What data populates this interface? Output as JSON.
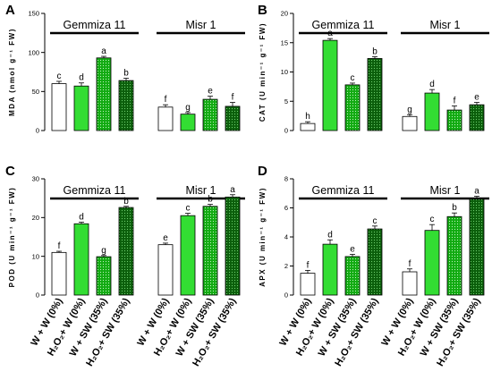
{
  "colors": [
    "#ffffff",
    "#33dd33",
    "#11aa11",
    "#0b5e0b"
  ],
  "pattern_dots": [
    false,
    false,
    true,
    true
  ],
  "categories": [
    "W + W (0%)",
    "H₂O₂+ W (0%)",
    "W + SW (35%)",
    "H₂O₂+ SW (35%)"
  ],
  "chart_data": [
    {
      "panel": "A",
      "type": "bar",
      "ylabel": "MDA (nmol g⁻¹ FW)",
      "ylim": [
        0,
        150
      ],
      "yticks": [
        0,
        50,
        100,
        150
      ],
      "groups": [
        {
          "name": "Gemmiza 11",
          "values": [
            60,
            57,
            93,
            64
          ],
          "errors": [
            3,
            4,
            2,
            3
          ],
          "letters": [
            "c",
            "d",
            "a",
            "b"
          ]
        },
        {
          "name": "Misr 1",
          "values": [
            30,
            21,
            40,
            31
          ],
          "errors": [
            3,
            2,
            4,
            5
          ],
          "letters": [
            "f",
            "g",
            "e",
            "f"
          ]
        }
      ]
    },
    {
      "panel": "B",
      "type": "bar",
      "ylabel": "CAT (U min⁻¹ g⁻¹ FW)",
      "ylim": [
        0,
        20
      ],
      "yticks": [
        0,
        5,
        10,
        15,
        20
      ],
      "groups": [
        {
          "name": "Gemmiza 11",
          "values": [
            1.2,
            15.4,
            7.8,
            12.3
          ],
          "errors": [
            0.3,
            0.3,
            0.3,
            0.3
          ],
          "letters": [
            "h",
            "a",
            "c",
            "b"
          ]
        },
        {
          "name": "Misr 1",
          "values": [
            2.4,
            6.4,
            3.5,
            4.4
          ],
          "errors": [
            0.3,
            0.6,
            0.7,
            0.4
          ],
          "letters": [
            "g",
            "d",
            "f",
            "e"
          ]
        }
      ]
    },
    {
      "panel": "C",
      "type": "bar",
      "ylabel": "POD (U min⁻¹ g⁻¹ FW)",
      "ylim": [
        0,
        30
      ],
      "yticks": [
        0,
        10,
        20,
        30
      ],
      "groups": [
        {
          "name": "Gemmiza 11",
          "values": [
            11,
            18.4,
            9.9,
            22.6
          ],
          "errors": [
            0.3,
            0.4,
            0.3,
            0.3
          ],
          "letters": [
            "f",
            "d",
            "g",
            "b"
          ]
        },
        {
          "name": "Misr 1",
          "values": [
            13,
            20.5,
            22.9,
            25.3
          ],
          "errors": [
            0.4,
            0.6,
            0.5,
            0.6
          ],
          "letters": [
            "e",
            "c",
            "b",
            "a"
          ]
        }
      ]
    },
    {
      "panel": "D",
      "type": "bar",
      "ylabel": "APX (U min⁻¹ g⁻¹ FW)",
      "ylim": [
        0,
        8
      ],
      "yticks": [
        0,
        2,
        4,
        6,
        8
      ],
      "groups": [
        {
          "name": "Gemmiza 11",
          "values": [
            1.5,
            3.5,
            2.65,
            4.55
          ],
          "errors": [
            0.2,
            0.3,
            0.15,
            0.2
          ],
          "letters": [
            "f",
            "d",
            "e",
            "c"
          ]
        },
        {
          "name": "Misr 1",
          "values": [
            1.6,
            4.45,
            5.4,
            6.6
          ],
          "errors": [
            0.2,
            0.4,
            0.25,
            0.2
          ],
          "letters": [
            "f",
            "c",
            "b",
            "a"
          ]
        }
      ]
    }
  ]
}
